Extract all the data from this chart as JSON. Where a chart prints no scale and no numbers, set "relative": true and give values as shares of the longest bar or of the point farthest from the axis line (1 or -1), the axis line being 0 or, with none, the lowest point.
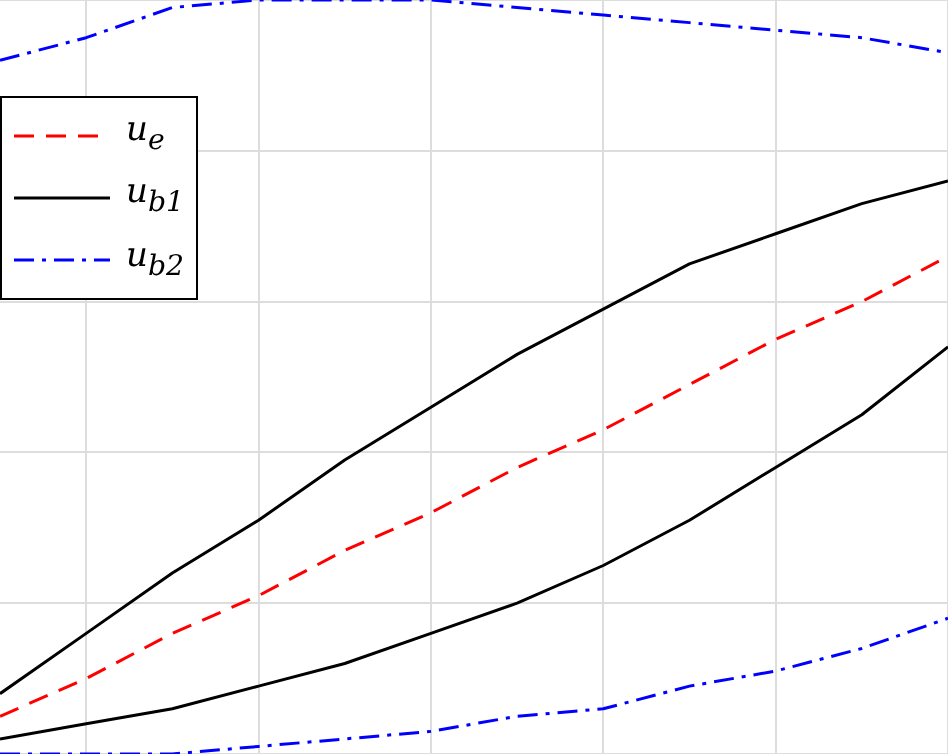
{
  "chart_data": {
    "type": "line",
    "relative": true,
    "grid": true,
    "legend": "top left",
    "marker": "none",
    "categories": [
      null,
      null,
      null,
      null,
      null,
      null,
      null,
      null,
      null,
      null,
      null,
      null
    ],
    "series": [
      {
        "name": "u$_{e}$",
        "color": "#ff0000",
        "line_style": "dashed",
        "values": [
          0.05,
          0.1,
          0.16,
          0.21,
          0.27,
          0.32,
          0.38,
          0.43,
          0.49,
          0.55,
          0.6,
          0.66
        ]
      },
      {
        "name": "u$_{b1}$",
        "color": "#000000",
        "line_style": "solid",
        "values": [
          0.08,
          0.16,
          0.24,
          0.31,
          0.39,
          0.46,
          0.53,
          0.59,
          0.65,
          0.69,
          0.73,
          0.76
        ]
      },
      {
        "color": "#000000",
        "line_style": "solid",
        "values": [
          0.02,
          0.04,
          0.06,
          0.09,
          0.12,
          0.16,
          0.2,
          0.25,
          0.31,
          0.38,
          0.45,
          0.54
        ]
      },
      {
        "name": "u$_{b2}$",
        "color": "#0000ff",
        "line_style": "dashdot",
        "values": [
          0.92,
          0.95,
          0.99,
          1.0,
          1.0,
          1.0,
          0.99,
          0.98,
          0.97,
          0.96,
          0.95,
          0.93
        ]
      },
      {
        "color": "#0000ff",
        "line_style": "dashdot",
        "values": [
          0,
          0,
          0,
          0.01,
          0.02,
          0.03,
          0.05,
          0.06,
          0.09,
          0.11,
          0.14,
          0.18
        ]
      }
    ]
  }
}
